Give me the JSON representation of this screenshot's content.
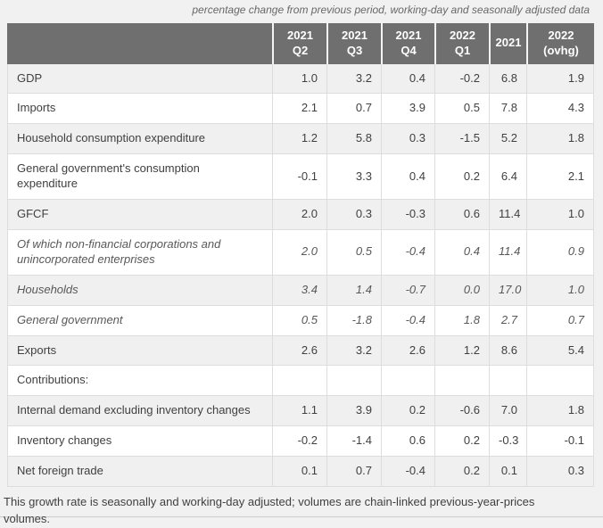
{
  "chart_data": {
    "type": "table",
    "title": "percentage change from previous period, working-day and seasonally adjusted data",
    "columns": [
      "",
      "2021\nQ2",
      "2021\nQ3",
      "2021\nQ4",
      "2022\nQ1",
      "2021",
      "2022\n(ovhg)"
    ],
    "rows": [
      {
        "label": "GDP",
        "italic": false,
        "values": [
          "1.0",
          "3.2",
          "0.4",
          "-0.2",
          "6.8",
          "1.9"
        ]
      },
      {
        "label": "Imports",
        "italic": false,
        "values": [
          "2.1",
          "0.7",
          "3.9",
          "0.5",
          "7.8",
          "4.3"
        ]
      },
      {
        "label": "Household consumption expenditure",
        "italic": false,
        "values": [
          "1.2",
          "5.8",
          "0.3",
          "-1.5",
          "5.2",
          "1.8"
        ]
      },
      {
        "label": "General government's consumption expenditure",
        "italic": false,
        "values": [
          "-0.1",
          "3.3",
          "0.4",
          "0.2",
          "6.4",
          "2.1"
        ]
      },
      {
        "label": "GFCF",
        "italic": false,
        "values": [
          "2.0",
          "0.3",
          "-0.3",
          "0.6",
          "11.4",
          "1.0"
        ]
      },
      {
        "label": "Of which non-financial corporations and unincorporated enterprises",
        "italic": true,
        "values": [
          "2.0",
          "0.5",
          "-0.4",
          "0.4",
          "11.4",
          "0.9"
        ]
      },
      {
        "label": "Households",
        "italic": true,
        "values": [
          "3.4",
          "1.4",
          "-0.7",
          "0.0",
          "17.0",
          "1.0"
        ]
      },
      {
        "label": "General government",
        "italic": true,
        "values": [
          "0.5",
          "-1.8",
          "-0.4",
          "1.8",
          "2.7",
          "0.7"
        ]
      },
      {
        "label": "Exports",
        "italic": false,
        "values": [
          "2.6",
          "3.2",
          "2.6",
          "1.2",
          "8.6",
          "5.4"
        ]
      },
      {
        "label": "Contributions:",
        "italic": false,
        "values": [
          "",
          "",
          "",
          "",
          "",
          ""
        ]
      },
      {
        "label": "Internal demand excluding inventory changes",
        "italic": false,
        "values": [
          "1.1",
          "3.9",
          "0.2",
          "-0.6",
          "7.0",
          "1.8"
        ]
      },
      {
        "label": "Inventory changes",
        "italic": false,
        "values": [
          "-0.2",
          "-1.4",
          "0.6",
          "0.2",
          "-0.3",
          "-0.1"
        ]
      },
      {
        "label": "Net foreign trade",
        "italic": false,
        "values": [
          "0.1",
          "0.7",
          "-0.4",
          "0.2",
          "0.1",
          "0.3"
        ]
      }
    ],
    "footnote": "This growth rate is seasonally and working-day adjusted; volumes are chain-linked previous-year-prices volumes.",
    "layout_hints": {
      "zebra_striping": true,
      "first_data_row_shaded": true,
      "values_aligned": "right"
    },
    "colors": {
      "header_bg": "#6f6f6f",
      "header_text": "#ffffff",
      "row_alt_bg": "#f0f0f0",
      "row_bg": "#ffffff",
      "border": "#dddddd",
      "page_bg": "#f1f1f1",
      "body_text": "#404040",
      "italic_text": "#585858",
      "note_text": "#686868"
    }
  }
}
